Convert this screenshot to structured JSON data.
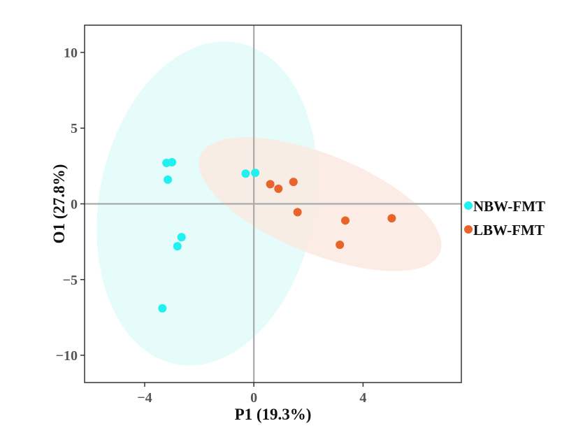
{
  "chart_data": {
    "type": "scatter",
    "title": "",
    "xlabel": "P1 (19.3%)",
    "ylabel": "O1 (27.8%)",
    "xlim": [
      -6.2,
      7.6
    ],
    "ylim": [
      -11.8,
      11.8
    ],
    "xticks": [
      -4,
      0,
      4
    ],
    "xtick_labels": [
      "−4",
      "0",
      "4"
    ],
    "yticks": [
      10,
      5,
      0,
      -5,
      -10
    ],
    "ytick_labels": [
      "10",
      "5",
      "0",
      "−5",
      "−10"
    ],
    "grid": false,
    "zero_lines": true,
    "legend_position": "right",
    "series": [
      {
        "name": "NBW-FMT",
        "color": "#1FF0F0",
        "ellipse_fill": "#E0FCFA",
        "points": [
          {
            "x": -3.2,
            "y": 2.7
          },
          {
            "x": -3.0,
            "y": 2.75
          },
          {
            "x": -3.15,
            "y": 1.6
          },
          {
            "x": -0.3,
            "y": 2.0
          },
          {
            "x": 0.05,
            "y": 2.05
          },
          {
            "x": -2.65,
            "y": -2.2
          },
          {
            "x": -2.8,
            "y": -2.8
          },
          {
            "x": -3.35,
            "y": -6.9
          }
        ]
      },
      {
        "name": "LBW-FMT",
        "color": "#E8642A",
        "ellipse_fill": "#FAEAE0",
        "points": [
          {
            "x": 0.6,
            "y": 1.3
          },
          {
            "x": 0.9,
            "y": 1.0
          },
          {
            "x": 1.45,
            "y": 1.45
          },
          {
            "x": 1.6,
            "y": -0.55
          },
          {
            "x": 3.35,
            "y": -1.1
          },
          {
            "x": 5.05,
            "y": -0.95
          },
          {
            "x": 3.15,
            "y": -2.7
          }
        ]
      }
    ]
  }
}
